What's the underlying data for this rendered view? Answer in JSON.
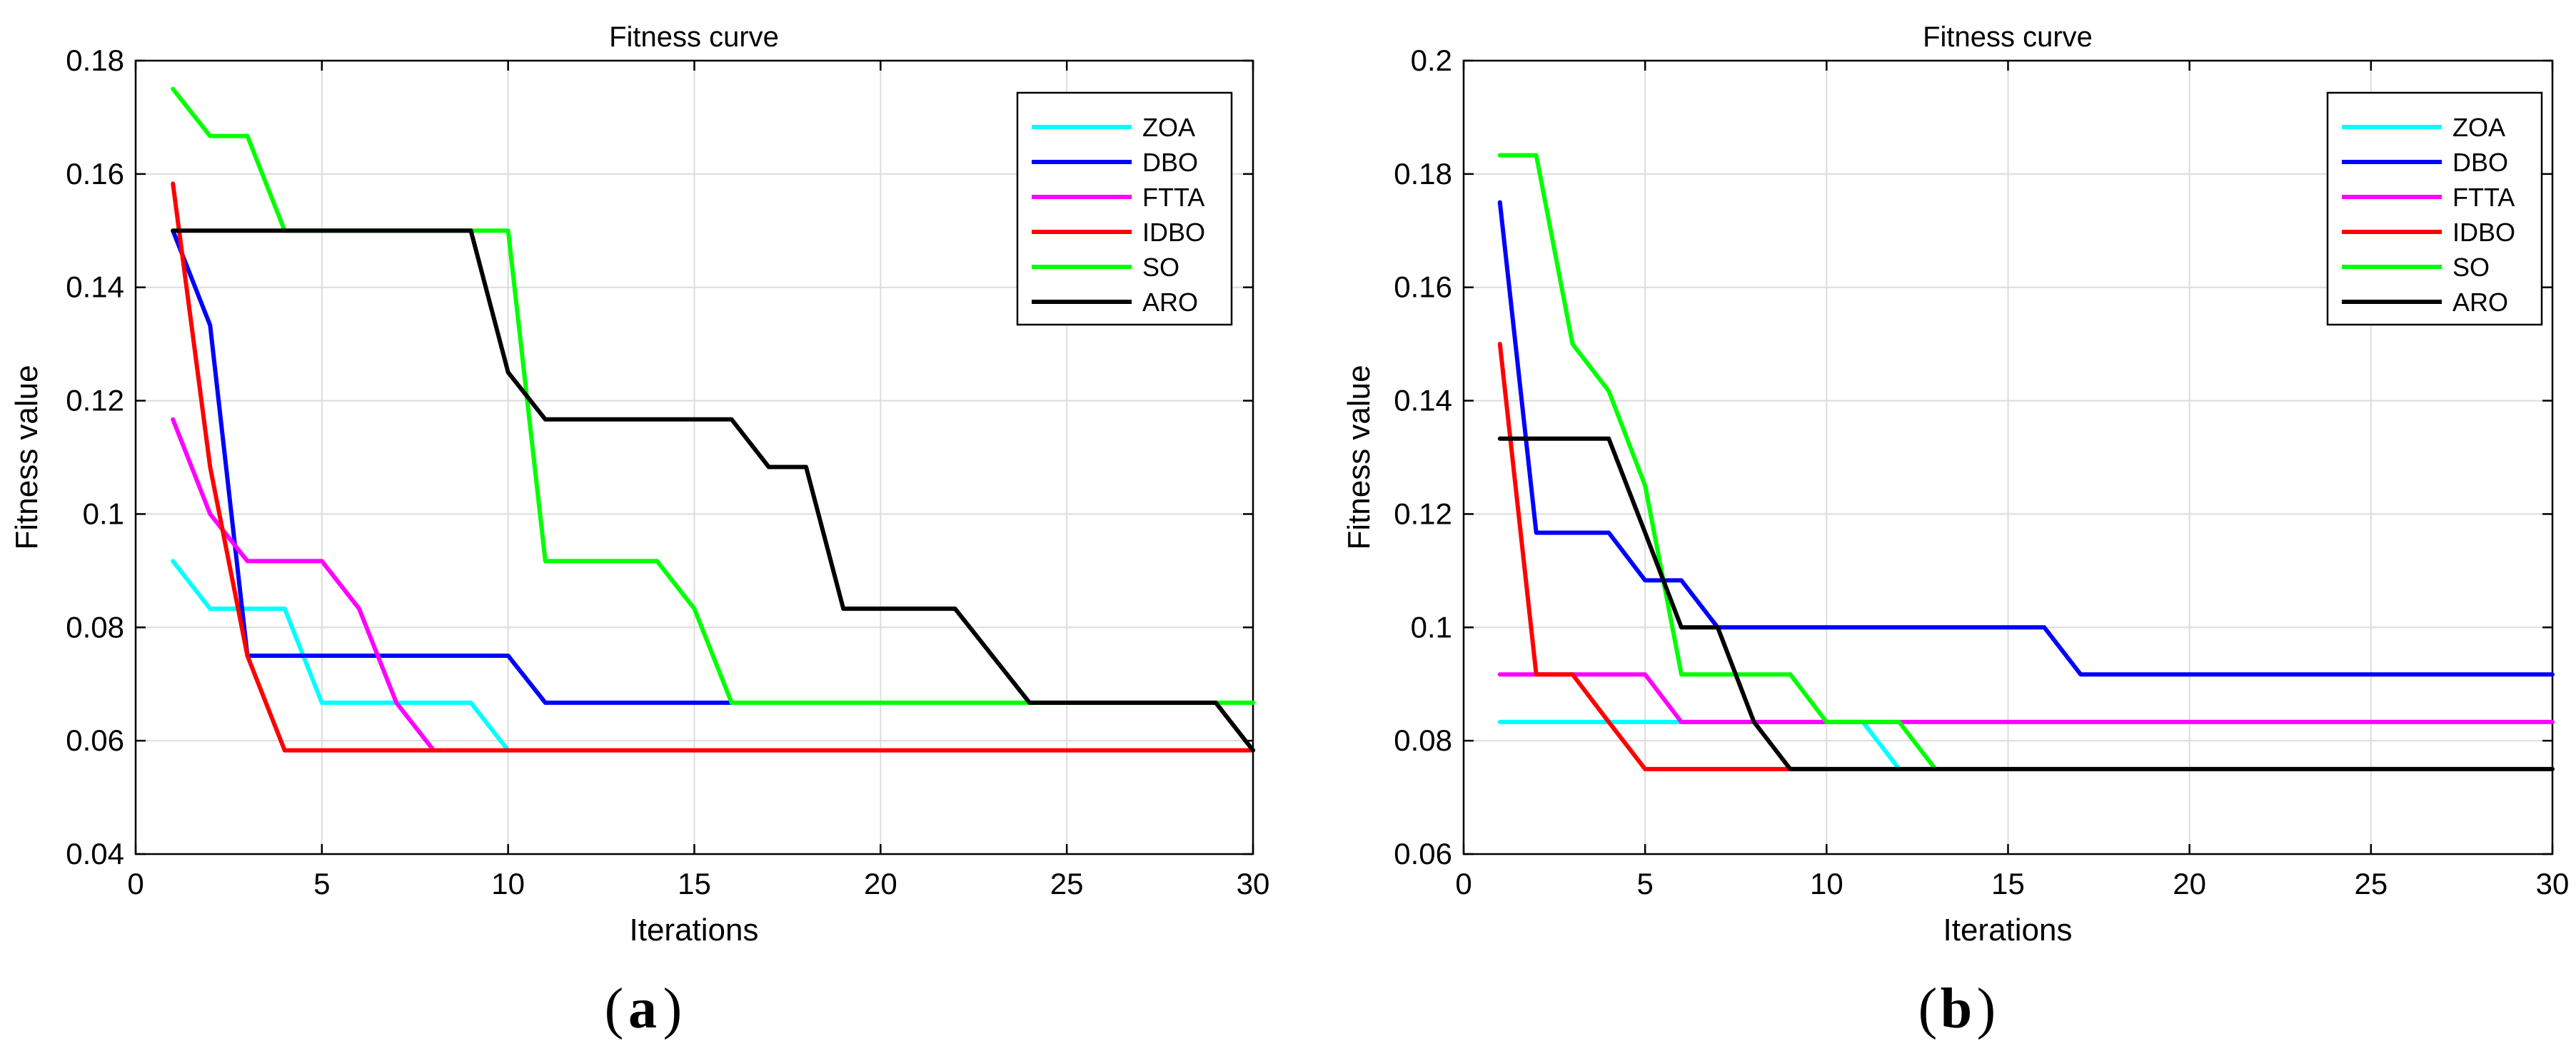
{
  "chart_data": [
    {
      "type": "line",
      "title": "Fitness curve",
      "xlabel": "Iterations",
      "ylabel": "Fitness value",
      "panel_label": "a",
      "xlim": [
        0,
        30
      ],
      "ylim": [
        0.04,
        0.18
      ],
      "xticks": [
        0,
        5,
        10,
        15,
        20,
        25,
        30
      ],
      "yticks": [
        0.04,
        0.06,
        0.08,
        0.1,
        0.12,
        0.14,
        0.16,
        0.18
      ],
      "ytick_labels": [
        "0.04",
        "0.06",
        "0.08",
        "0.1",
        "0.12",
        "0.14",
        "0.16",
        "0.18"
      ],
      "grid": true,
      "legend_position": "top-right",
      "series": [
        {
          "name": "ZOA",
          "color": "#00FFFF",
          "points": [
            [
              1,
              0.0917
            ],
            [
              2,
              0.0833
            ],
            [
              3,
              0.0833
            ],
            [
              4,
              0.0833
            ],
            [
              5,
              0.0667
            ],
            [
              6,
              0.0667
            ],
            [
              7,
              0.0667
            ],
            [
              8,
              0.0667
            ],
            [
              9,
              0.0667
            ],
            [
              10,
              0.0583
            ]
          ]
        },
        {
          "name": "DBO",
          "color": "#0000FF",
          "points": [
            [
              1,
              0.15
            ],
            [
              2,
              0.1333
            ],
            [
              3,
              0.075
            ],
            [
              4,
              0.075
            ],
            [
              5,
              0.075
            ],
            [
              6,
              0.075
            ],
            [
              7,
              0.075
            ],
            [
              8,
              0.075
            ],
            [
              9,
              0.075
            ],
            [
              10,
              0.075
            ],
            [
              11,
              0.0667
            ],
            [
              12,
              0.0667
            ],
            [
              13,
              0.0667
            ],
            [
              14,
              0.0667
            ],
            [
              15,
              0.0667
            ],
            [
              16,
              0.0667
            ]
          ]
        },
        {
          "name": "FTTA",
          "color": "#FF00FF",
          "points": [
            [
              1,
              0.1167
            ],
            [
              2,
              0.1
            ],
            [
              3,
              0.0917
            ],
            [
              4,
              0.0917
            ],
            [
              5,
              0.0917
            ],
            [
              6,
              0.0833
            ],
            [
              7,
              0.0667
            ],
            [
              8,
              0.0583
            ]
          ]
        },
        {
          "name": "IDBO",
          "color": "#FF0000",
          "points": [
            [
              1,
              0.1583
            ],
            [
              2,
              0.1083
            ],
            [
              3,
              0.075
            ],
            [
              4,
              0.0583
            ],
            [
              5,
              0.0583
            ],
            [
              10,
              0.0583
            ],
            [
              15,
              0.0583
            ],
            [
              20,
              0.0583
            ],
            [
              25,
              0.0583
            ],
            [
              30,
              0.0583
            ]
          ]
        },
        {
          "name": "SO",
          "color": "#00FF00",
          "points": [
            [
              1,
              0.175
            ],
            [
              2,
              0.1667
            ],
            [
              3,
              0.1667
            ],
            [
              4,
              0.15
            ],
            [
              5,
              0.15
            ],
            [
              6,
              0.15
            ],
            [
              7,
              0.15
            ],
            [
              8,
              0.15
            ],
            [
              9,
              0.15
            ],
            [
              10,
              0.15
            ],
            [
              11,
              0.0917
            ],
            [
              12,
              0.0917
            ],
            [
              13,
              0.0917
            ],
            [
              14,
              0.0917
            ],
            [
              15,
              0.0833
            ],
            [
              16,
              0.0667
            ],
            [
              20,
              0.0667
            ],
            [
              25,
              0.0667
            ],
            [
              30,
              0.0667
            ]
          ]
        },
        {
          "name": "ARO",
          "color": "#000000",
          "points": [
            [
              1,
              0.15
            ],
            [
              2,
              0.15
            ],
            [
              3,
              0.15
            ],
            [
              4,
              0.15
            ],
            [
              5,
              0.15
            ],
            [
              6,
              0.15
            ],
            [
              7,
              0.15
            ],
            [
              8,
              0.15
            ],
            [
              9,
              0.15
            ],
            [
              10,
              0.125
            ],
            [
              11,
              0.1167
            ],
            [
              12,
              0.1167
            ],
            [
              13,
              0.1167
            ],
            [
              14,
              0.1167
            ],
            [
              15,
              0.1167
            ],
            [
              16,
              0.1167
            ],
            [
              17,
              0.1083
            ],
            [
              18,
              0.1083
            ],
            [
              19,
              0.0833
            ],
            [
              20,
              0.0833
            ],
            [
              21,
              0.0833
            ],
            [
              22,
              0.0833
            ],
            [
              23,
              0.075
            ],
            [
              24,
              0.0667
            ],
            [
              25,
              0.0667
            ],
            [
              26,
              0.0667
            ],
            [
              27,
              0.0667
            ],
            [
              28,
              0.0667
            ],
            [
              29,
              0.0667
            ],
            [
              30,
              0.0583
            ]
          ]
        }
      ]
    },
    {
      "type": "line",
      "title": "Fitness curve",
      "xlabel": "Iterations",
      "ylabel": "Fitness value",
      "panel_label": "b",
      "xlim": [
        0,
        30
      ],
      "ylim": [
        0.06,
        0.2
      ],
      "xticks": [
        0,
        5,
        10,
        15,
        20,
        25,
        30
      ],
      "yticks": [
        0.06,
        0.08,
        0.1,
        0.12,
        0.14,
        0.16,
        0.18,
        0.2
      ],
      "ytick_labels": [
        "0.06",
        "0.08",
        "0.1",
        "0.12",
        "0.14",
        "0.16",
        "0.18",
        "0.2"
      ],
      "grid": true,
      "legend_position": "top-right",
      "series": [
        {
          "name": "ZOA",
          "color": "#00FFFF",
          "points": [
            [
              1,
              0.0833
            ],
            [
              2,
              0.0833
            ],
            [
              3,
              0.0833
            ],
            [
              4,
              0.0833
            ],
            [
              5,
              0.0833
            ],
            [
              6,
              0.0833
            ],
            [
              7,
              0.0833
            ],
            [
              8,
              0.0833
            ],
            [
              9,
              0.0833
            ],
            [
              10,
              0.0833
            ],
            [
              11,
              0.0833
            ],
            [
              12,
              0.075
            ]
          ]
        },
        {
          "name": "DBO",
          "color": "#0000FF",
          "points": [
            [
              1,
              0.175
            ],
            [
              2,
              0.1167
            ],
            [
              3,
              0.1167
            ],
            [
              4,
              0.1167
            ],
            [
              5,
              0.1083
            ],
            [
              6,
              0.1083
            ],
            [
              7,
              0.1
            ],
            [
              8,
              0.1
            ],
            [
              9,
              0.1
            ],
            [
              10,
              0.1
            ],
            [
              11,
              0.1
            ],
            [
              12,
              0.1
            ],
            [
              13,
              0.1
            ],
            [
              14,
              0.1
            ],
            [
              15,
              0.1
            ],
            [
              16,
              0.1
            ],
            [
              17,
              0.0917
            ],
            [
              20,
              0.0917
            ],
            [
              25,
              0.0917
            ],
            [
              30,
              0.0917
            ]
          ]
        },
        {
          "name": "FTTA",
          "color": "#FF00FF",
          "points": [
            [
              1,
              0.0917
            ],
            [
              2,
              0.0917
            ],
            [
              3,
              0.0917
            ],
            [
              4,
              0.0917
            ],
            [
              5,
              0.0917
            ],
            [
              6,
              0.0833
            ],
            [
              10,
              0.0833
            ],
            [
              15,
              0.0833
            ],
            [
              20,
              0.0833
            ],
            [
              25,
              0.0833
            ],
            [
              30,
              0.0833
            ]
          ]
        },
        {
          "name": "IDBO",
          "color": "#FF0000",
          "points": [
            [
              1,
              0.15
            ],
            [
              2,
              0.0917
            ],
            [
              3,
              0.0917
            ],
            [
              4,
              0.0833
            ],
            [
              5,
              0.075
            ],
            [
              6,
              0.075
            ],
            [
              7,
              0.075
            ],
            [
              8,
              0.075
            ],
            [
              9,
              0.075
            ],
            [
              10,
              0.075
            ]
          ]
        },
        {
          "name": "SO",
          "color": "#00FF00",
          "points": [
            [
              1,
              0.1833
            ],
            [
              2,
              0.1833
            ],
            [
              3,
              0.15
            ],
            [
              4,
              0.1417
            ],
            [
              5,
              0.125
            ],
            [
              6,
              0.0917
            ],
            [
              7,
              0.0917
            ],
            [
              8,
              0.0917
            ],
            [
              9,
              0.0917
            ],
            [
              10,
              0.0833
            ],
            [
              11,
              0.0833
            ],
            [
              12,
              0.0833
            ],
            [
              13,
              0.075
            ]
          ]
        },
        {
          "name": "ARO",
          "color": "#000000",
          "points": [
            [
              1,
              0.1333
            ],
            [
              2,
              0.1333
            ],
            [
              3,
              0.1333
            ],
            [
              4,
              0.1333
            ],
            [
              5,
              0.1167
            ],
            [
              6,
              0.1
            ],
            [
              7,
              0.1
            ],
            [
              8,
              0.0833
            ],
            [
              9,
              0.075
            ],
            [
              10,
              0.075
            ],
            [
              15,
              0.075
            ],
            [
              20,
              0.075
            ],
            [
              25,
              0.075
            ],
            [
              30,
              0.075
            ]
          ]
        }
      ]
    }
  ]
}
